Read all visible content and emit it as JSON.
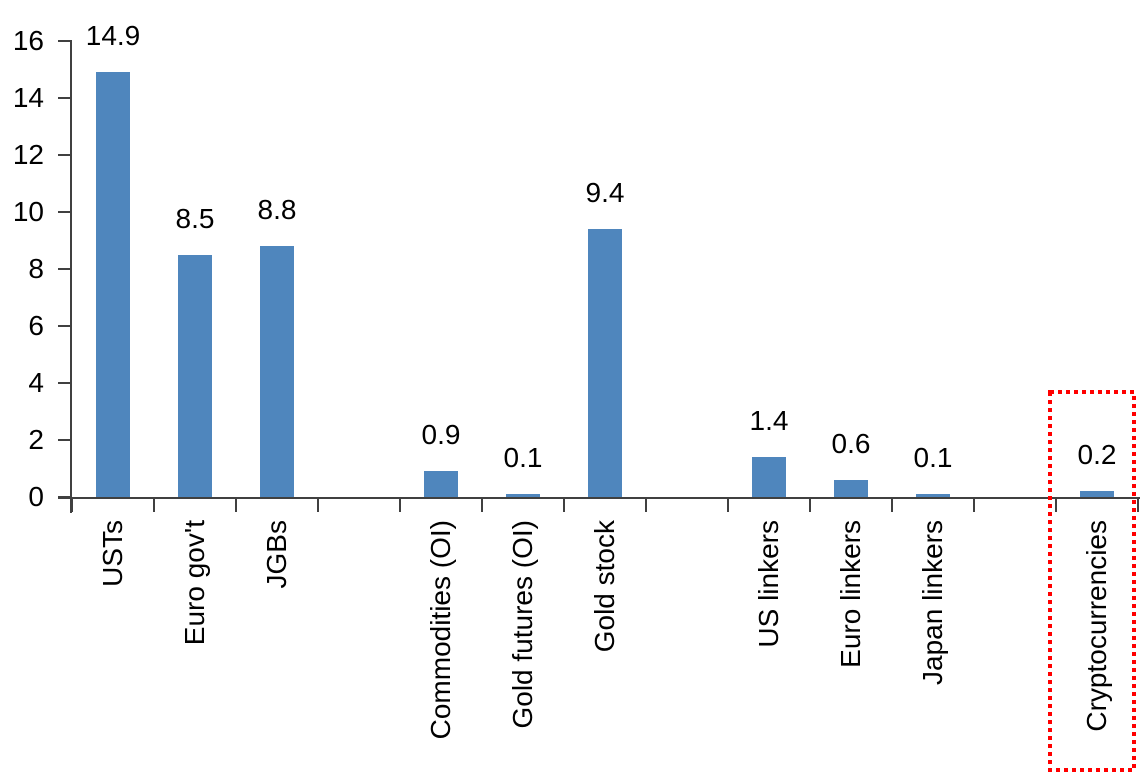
{
  "chart_data": {
    "type": "bar",
    "title": "",
    "xlabel": "",
    "ylabel": "",
    "categories": [
      "USTs",
      "Euro gov't",
      "JGBs",
      "Commodities (OI)",
      "Gold futures (OI)",
      "Gold stock",
      "US linkers",
      "Euro linkers",
      "Japan linkers",
      "Cryptocurrencies"
    ],
    "values": [
      14.9,
      8.5,
      8.8,
      0.9,
      0.1,
      9.4,
      1.4,
      0.6,
      0.1,
      0.2
    ],
    "value_labels": [
      "14.9",
      "8.5",
      "8.8",
      "0.9",
      "0.1",
      "9.4",
      "1.4",
      "0.6",
      "0.1",
      "0.2"
    ],
    "slots": [
      0,
      1,
      2,
      4,
      5,
      6,
      8,
      9,
      10,
      12
    ],
    "total_slots": 13,
    "ylim": [
      0,
      16
    ],
    "yticks": [
      0,
      2,
      4,
      6,
      8,
      10,
      12,
      14,
      16
    ],
    "ytick_labels": [
      "0",
      "2",
      "4",
      "6",
      "8",
      "10",
      "12",
      "14",
      "16"
    ],
    "grid": false,
    "legend": false,
    "bar_color": "#4F86BD",
    "axis_color": "#404040",
    "text_color": "#000000",
    "highlight": {
      "target": "Cryptocurrencies",
      "shape": "dotted-rectangle",
      "color": "#FF0000"
    }
  }
}
